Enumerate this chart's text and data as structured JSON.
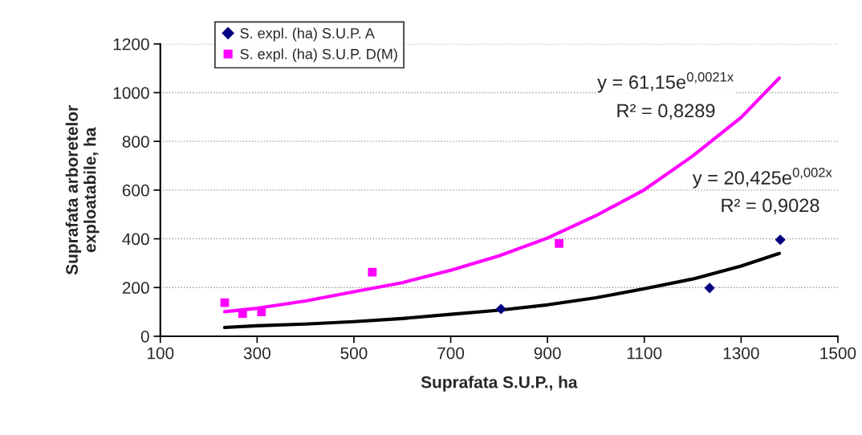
{
  "chart_data": {
    "type": "scatter",
    "xlabel": "Suprafata S.U.P., ha",
    "ylabel": "Suprafata arboretelor\nexploatabile, ha",
    "xlim": [
      100,
      1500
    ],
    "xticks": [
      100,
      300,
      500,
      700,
      900,
      1100,
      1300,
      1500
    ],
    "ylim": [
      0,
      1200
    ],
    "yticks": [
      0,
      200,
      400,
      600,
      800,
      1000,
      1200
    ],
    "grid": "y",
    "legend": "top left",
    "series": [
      {
        "name": "S. expl. (ha) S.U.P. A",
        "marker": "diamond",
        "color": "#000080",
        "x": [
          804,
          1235,
          1381
        ],
        "values": [
          112,
          198,
          396
        ]
      },
      {
        "name": "S. expl. (ha) S.U.P. D(M)",
        "marker": "square",
        "color": "#ff00ff",
        "x": [
          233,
          270,
          309,
          538,
          924
        ],
        "values": [
          138,
          93,
          100,
          263,
          381
        ]
      },
      {
        "type": "line",
        "marker": "none",
        "color": "#000000",
        "x": [
          233,
          300,
          400,
          500,
          600,
          700,
          800,
          900,
          1000,
          1100,
          1200,
          1300,
          1379
        ],
        "values": [
          36,
          43,
          50,
          60,
          73,
          90,
          107,
          129,
          158,
          195,
          235,
          288,
          340
        ]
      },
      {
        "type": "line",
        "marker": "none",
        "color": "#ff00ff",
        "x": [
          233,
          300,
          400,
          500,
          600,
          700,
          800,
          900,
          1000,
          1100,
          1200,
          1300,
          1379
        ],
        "values": [
          101,
          115,
          145,
          183,
          220,
          271,
          330,
          403,
          495,
          601,
          740,
          898,
          1060
        ]
      }
    ],
    "annotations": [
      "y = 61,15e$^{0,0021x}$",
      "R² = 0,8289",
      "y = 20,425e$^{0,002x}$",
      "R² = 0,9028"
    ]
  }
}
